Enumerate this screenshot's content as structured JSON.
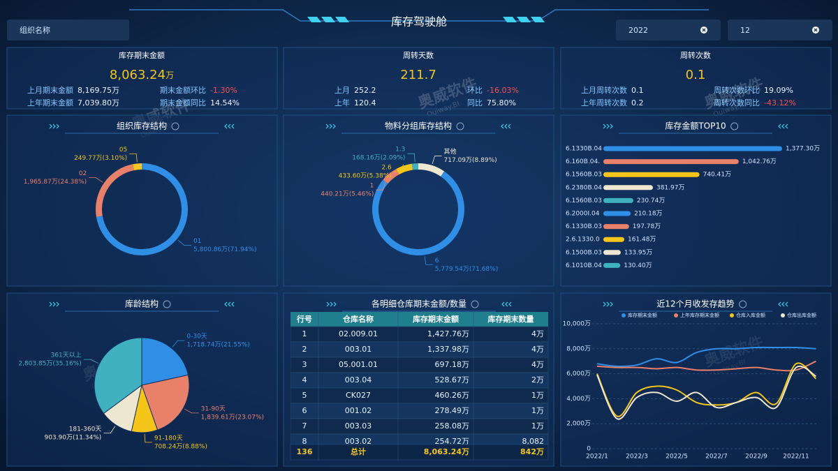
{
  "header": {
    "title": "库存驾驶舱",
    "org_placeholder": "组织名称",
    "year": "2022",
    "month": "12"
  },
  "watermark": {
    "brand": "奥威软件",
    "site": "Ouiway.BI"
  },
  "kpis": [
    {
      "title": "库存期末金额",
      "value": "8,063.24",
      "unit": "万",
      "items": [
        {
          "label": "上月期末金额",
          "value": "8,169.75万"
        },
        {
          "label": "期末金额环比",
          "value": "-1.30%"
        },
        {
          "label": "上年期末金额",
          "value": "7,039.80万"
        },
        {
          "label": "期末金额同比",
          "value": "14.54%"
        }
      ]
    },
    {
      "title": "周转天数",
      "value": "211.7",
      "items": [
        {
          "label": "上月",
          "value": "252.2"
        },
        {
          "label": "环比",
          "value": "-16.03%"
        },
        {
          "label": "上年",
          "value": "120.4"
        },
        {
          "label": "同比",
          "value": "75.80%"
        }
      ]
    },
    {
      "title": "周转次数",
      "value": "0.1",
      "items": [
        {
          "label": "上月周转次数",
          "value": "0.1"
        },
        {
          "label": "周转次数环比",
          "value": "19.09%"
        },
        {
          "label": "上年周转次数",
          "value": "0.2"
        },
        {
          "label": "周转次数同比",
          "value": "-43.12%"
        }
      ]
    }
  ],
  "chart_data": [
    {
      "type": "donut",
      "title": "组织库存结构",
      "categories": [
        "01",
        "02",
        "05"
      ],
      "values": [
        5800.86,
        1965.87,
        249.77
      ],
      "value_labels": [
        "5,800.86万(71.94%)",
        "1,965.87万(24.38%)",
        "249.77万(3.10%)"
      ],
      "colors": [
        "#2f8fe6",
        "#e8806a",
        "#f5c518"
      ]
    },
    {
      "type": "donut",
      "title": "物料分组库存结构",
      "categories": [
        "其他",
        "6",
        "1",
        "2.6",
        "1.3"
      ],
      "values": [
        717.09,
        5779.54,
        440.21,
        433.6,
        168.16
      ],
      "value_labels": [
        "717.09万(8.89%)",
        "5,779.54万(71.68%)",
        "440.21万(5.46%)",
        "433.60万(5.38%)",
        "168.16万(2.09%)"
      ],
      "colors": [
        "#efe6cf",
        "#2f8fe6",
        "#e8806a",
        "#f5c518",
        "#3fb1c0"
      ]
    },
    {
      "type": "hbar",
      "title": "库存金额TOP10",
      "categories": [
        "6.1330B.04",
        "6.160B.04.",
        "6.1560B.03",
        "6.2380B.04",
        "6.1560B.03",
        "6.2000I.04",
        "6.1330B.03",
        "2.6.1330.0",
        "6.1500B.03",
        "6.1010B.04"
      ],
      "values": [
        1377.3,
        1042.76,
        740.41,
        381.97,
        230.74,
        210.18,
        197.78,
        161.48,
        133.95,
        130.4
      ],
      "value_labels": [
        "1,377.30万",
        "1,042.76万",
        "740.41万",
        "381.97万",
        "230.74万",
        "210.18万",
        "197.78万",
        "161.48万",
        "133.95万",
        "130.40万"
      ],
      "colors": [
        "#2f8fe6",
        "#e8806a",
        "#f5c518",
        "#efe6cf",
        "#3fb1c0",
        "#2f8fe6",
        "#e8806a",
        "#f5c518",
        "#efe6cf",
        "#3fb1c0"
      ]
    },
    {
      "type": "pie",
      "title": "库龄结构",
      "categories": [
        "0-30天",
        "31-90天",
        "91-180天",
        "181-360天",
        "361天以上"
      ],
      "values": [
        1718.74,
        1839.61,
        708.24,
        903.9,
        2803.85
      ],
      "value_labels": [
        "1,718.74万(21.55%)",
        "1,839.61万(23.07%)",
        "708.24万(8.88%)",
        "903.90万(11.34%)",
        "2,803.85万(35.16%)"
      ],
      "colors": [
        "#2f8fe6",
        "#e8806a",
        "#f5c518",
        "#efe6cf",
        "#3fb1c0"
      ]
    },
    {
      "type": "line",
      "title": "近12个月收发存趋势",
      "categories": [
        "2022/1",
        null,
        "2022/3",
        null,
        "2022/5",
        null,
        "2022/7",
        null,
        "2022/9",
        null,
        "2022/11",
        null
      ],
      "series": [
        {
          "name": "库存期末金额",
          "color": "#2f8fe6",
          "values": [
            6800,
            6600,
            6700,
            7200,
            6900,
            7700,
            8000,
            8000,
            8100,
            8100,
            8100,
            8000
          ]
        },
        {
          "name": "上年库存期末金额",
          "color": "#e8806a",
          "values": [
            6600,
            6500,
            6500,
            6400,
            6500,
            6300,
            6300,
            6400,
            6500,
            6300,
            6300,
            7000
          ]
        },
        {
          "name": "仓库入库金额",
          "color": "#f5c518",
          "values": [
            6000,
            2600,
            4500,
            5000,
            4700,
            3700,
            3500,
            3700,
            4500,
            3600,
            6800,
            5600
          ]
        },
        {
          "name": "仓库出库金额",
          "color": "#efe6cf",
          "values": [
            5900,
            2400,
            4100,
            4500,
            3800,
            4500,
            3300,
            3700,
            4100,
            3300,
            6500,
            5800
          ]
        }
      ],
      "ylim": [
        0,
        10000
      ],
      "yticks": [
        0,
        {
          "value": 2000,
          "label": "2,000万"
        },
        {
          "value": 4000,
          "label": "4,000万"
        },
        {
          "value": 6000,
          "label": "6,000万"
        },
        {
          "value": 8000,
          "label": "8,000万"
        },
        {
          "value": 10000,
          "label": "10,000万"
        }
      ],
      "grid": true
    }
  ],
  "table": {
    "title": "各明细仓库期末金额/数量",
    "columns": [
      "行号",
      "仓库名称",
      "库存期末金额",
      "库存期末数量"
    ],
    "rows": [
      [
        "1",
        "02.009.01",
        "1,427.76万",
        "4万"
      ],
      [
        "2",
        "003.01",
        "1,337.98万",
        "4万"
      ],
      [
        "3",
        "05.001.01",
        "697.18万",
        "4万"
      ],
      [
        "4",
        "003.04",
        "528.67万",
        "2万"
      ],
      [
        "5",
        "CK027",
        "460.26万",
        "1万"
      ],
      [
        "6",
        "001.02",
        "278.49万",
        "1万"
      ],
      [
        "7",
        "003.03",
        "258.08万",
        "1万"
      ],
      [
        "8",
        "003.02",
        "254.72万",
        "8,082"
      ]
    ],
    "total": [
      "136",
      "总计",
      "8,063.24万",
      "842万"
    ]
  }
}
